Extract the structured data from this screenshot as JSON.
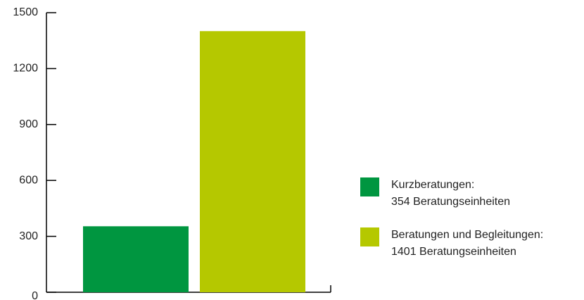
{
  "chart_data": {
    "type": "bar",
    "categories": [
      null
    ],
    "series": [
      {
        "name": "Kurzberatungen:\n354 Beratungseinheiten",
        "color": "#009640",
        "values": [
          354
        ]
      },
      {
        "name": "Beratungen und Begleitungen:\n1401 Beratungseinheiten",
        "color": "#b5c800",
        "values": [
          1401
        ]
      }
    ],
    "ylim": [
      0,
      1500
    ],
    "yticks": [
      0,
      300,
      600,
      900,
      1200,
      1500
    ],
    "grid": false,
    "legend": "right"
  }
}
